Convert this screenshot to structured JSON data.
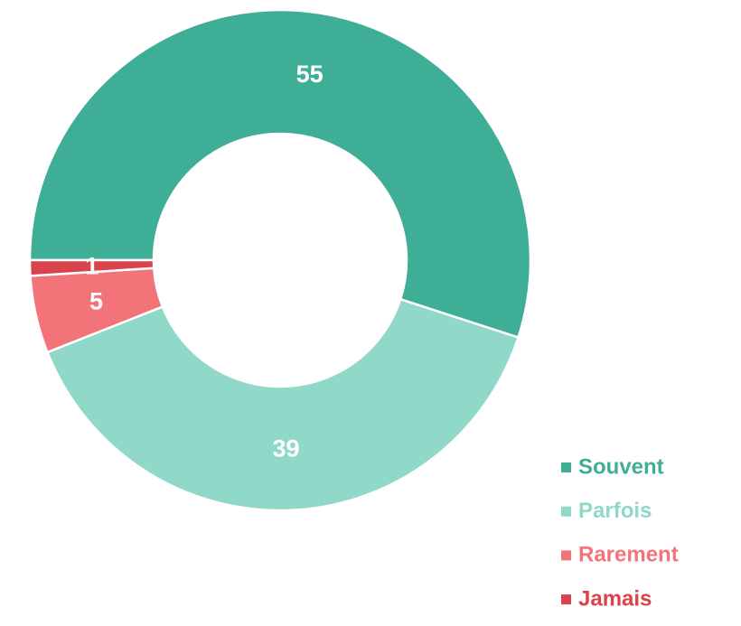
{
  "chart_data": {
    "type": "donut",
    "categories": [
      "Souvent",
      "Parfois",
      "Rarement",
      "Jamais"
    ],
    "values": [
      55,
      39,
      5,
      1
    ],
    "colors": [
      "#3fae97",
      "#90d8c8",
      "#f27479",
      "#d9434b"
    ],
    "legend": "bottom-right"
  }
}
